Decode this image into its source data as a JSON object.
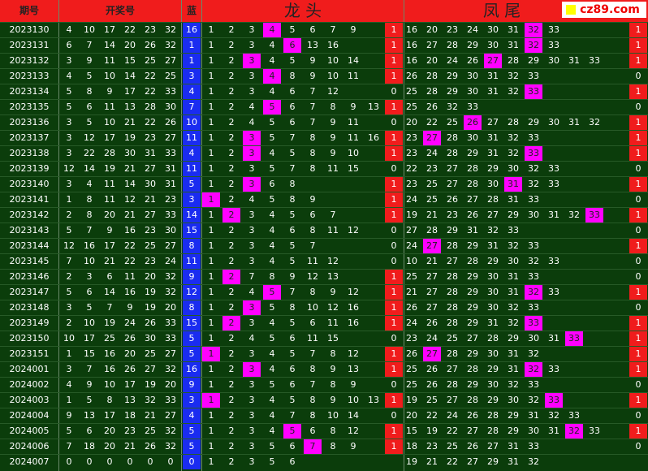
{
  "header": {
    "period": "期号",
    "draw": "开奖号",
    "blue": "蓝",
    "head": "龙 头",
    "tail": "凤 尾",
    "logo": "cz89.com"
  },
  "rows": [
    {
      "period": "2023130",
      "reds": [
        4,
        10,
        17,
        22,
        23,
        32
      ],
      "blue": 16,
      "head": [
        1,
        2,
        3,
        4,
        5,
        6,
        7,
        9
      ],
      "head_flag": 1,
      "tail": [
        16,
        20,
        23,
        24,
        30,
        31,
        32,
        33
      ],
      "tail_flag": 1
    },
    {
      "period": "2023131",
      "reds": [
        6,
        7,
        14,
        20,
        26,
        32
      ],
      "blue": 1,
      "head": [
        1,
        2,
        3,
        4,
        6,
        13,
        16
      ],
      "head_flag": 1,
      "tail": [
        16,
        27,
        28,
        29,
        30,
        31,
        32,
        33
      ],
      "tail_flag": 1
    },
    {
      "period": "2023132",
      "reds": [
        3,
        9,
        11,
        15,
        25,
        27
      ],
      "blue": 1,
      "head": [
        1,
        2,
        3,
        4,
        5,
        9,
        10,
        14
      ],
      "head_flag": 1,
      "tail": [
        16,
        20,
        24,
        26,
        27,
        28,
        29,
        30,
        31,
        33
      ],
      "tail_flag": 1
    },
    {
      "period": "2023133",
      "reds": [
        4,
        5,
        10,
        14,
        22,
        25
      ],
      "blue": 3,
      "head": [
        1,
        2,
        3,
        4,
        8,
        9,
        10,
        11
      ],
      "head_flag": 1,
      "tail": [
        26,
        28,
        29,
        30,
        31,
        32,
        33
      ],
      "tail_flag": 0
    },
    {
      "period": "2023134",
      "reds": [
        5,
        8,
        9,
        17,
        22,
        33
      ],
      "blue": 4,
      "head": [
        1,
        2,
        3,
        4,
        6,
        7,
        12
      ],
      "head_flag": 0,
      "tail": [
        25,
        28,
        29,
        30,
        31,
        32,
        33
      ],
      "tail_flag": 1
    },
    {
      "period": "2023135",
      "reds": [
        5,
        6,
        11,
        13,
        28,
        30
      ],
      "blue": 7,
      "head": [
        1,
        2,
        4,
        5,
        6,
        7,
        8,
        9,
        13
      ],
      "head_flag": 1,
      "tail": [
        25,
        26,
        32,
        33
      ],
      "tail_flag": 0
    },
    {
      "period": "2023136",
      "reds": [
        3,
        5,
        10,
        21,
        22,
        26
      ],
      "blue": 10,
      "head": [
        1,
        2,
        4,
        5,
        6,
        7,
        9,
        11
      ],
      "head_flag": 0,
      "tail": [
        20,
        22,
        25,
        26,
        27,
        28,
        29,
        30,
        31,
        32
      ],
      "tail_flag": 1
    },
    {
      "period": "2023137",
      "reds": [
        3,
        12,
        17,
        19,
        23,
        27
      ],
      "blue": 11,
      "head": [
        1,
        2,
        3,
        5,
        7,
        8,
        9,
        11,
        16
      ],
      "head_flag": 1,
      "tail": [
        23,
        27,
        28,
        30,
        31,
        32,
        33
      ],
      "tail_flag": 1
    },
    {
      "period": "2023138",
      "reds": [
        3,
        22,
        28,
        30,
        31,
        33
      ],
      "blue": 4,
      "head": [
        1,
        2,
        3,
        4,
        5,
        8,
        9,
        10
      ],
      "head_flag": 1,
      "tail": [
        23,
        24,
        28,
        29,
        31,
        32,
        33
      ],
      "tail_flag": 1
    },
    {
      "period": "2023139",
      "reds": [
        12,
        14,
        19,
        21,
        27,
        31
      ],
      "blue": 11,
      "head": [
        1,
        2,
        3,
        5,
        7,
        8,
        11,
        15
      ],
      "head_flag": 0,
      "tail": [
        22,
        23,
        27,
        28,
        29,
        30,
        32,
        33
      ],
      "tail_flag": 0
    },
    {
      "period": "2023140",
      "reds": [
        3,
        4,
        11,
        14,
        30,
        31
      ],
      "blue": 5,
      "head": [
        1,
        2,
        3,
        6,
        8
      ],
      "head_flag": 1,
      "tail": [
        23,
        25,
        27,
        28,
        30,
        31,
        32,
        33
      ],
      "tail_flag": 1
    },
    {
      "period": "2023141",
      "reds": [
        1,
        8,
        11,
        12,
        21,
        23
      ],
      "blue": 3,
      "head": [
        1,
        2,
        4,
        5,
        8,
        9
      ],
      "head_flag": 1,
      "tail": [
        24,
        25,
        26,
        27,
        28,
        31,
        33
      ],
      "tail_flag": 0
    },
    {
      "period": "2023142",
      "reds": [
        2,
        8,
        20,
        21,
        27,
        33
      ],
      "blue": 14,
      "head": [
        1,
        2,
        3,
        4,
        5,
        6,
        7
      ],
      "head_flag": 1,
      "tail": [
        19,
        21,
        23,
        26,
        27,
        29,
        30,
        31,
        32,
        33
      ],
      "tail_flag": 1
    },
    {
      "period": "2023143",
      "reds": [
        5,
        7,
        9,
        16,
        23,
        30
      ],
      "blue": 15,
      "head": [
        1,
        2,
        3,
        4,
        6,
        8,
        11,
        12
      ],
      "head_flag": 0,
      "tail": [
        27,
        28,
        29,
        31,
        32,
        33
      ],
      "tail_flag": 0
    },
    {
      "period": "2023144",
      "reds": [
        12,
        16,
        17,
        22,
        25,
        27
      ],
      "blue": 8,
      "head": [
        1,
        2,
        3,
        4,
        5,
        7
      ],
      "head_flag": 0,
      "tail": [
        24,
        27,
        28,
        29,
        31,
        32,
        33
      ],
      "tail_flag": 1
    },
    {
      "period": "2023145",
      "reds": [
        7,
        10,
        21,
        22,
        23,
        24
      ],
      "blue": 11,
      "head": [
        1,
        2,
        3,
        4,
        5,
        11,
        12
      ],
      "head_flag": 0,
      "tail": [
        10,
        21,
        27,
        28,
        29,
        30,
        32,
        33
      ],
      "tail_flag": 0
    },
    {
      "period": "2023146",
      "reds": [
        2,
        3,
        6,
        11,
        20,
        32
      ],
      "blue": 9,
      "head": [
        1,
        2,
        7,
        8,
        9,
        12,
        13
      ],
      "head_flag": 1,
      "tail": [
        25,
        27,
        28,
        29,
        30,
        31,
        33
      ],
      "tail_flag": 0
    },
    {
      "period": "2023147",
      "reds": [
        5,
        6,
        14,
        16,
        19,
        32
      ],
      "blue": 12,
      "head": [
        1,
        2,
        4,
        5,
        7,
        8,
        9,
        12
      ],
      "head_flag": 1,
      "tail": [
        21,
        27,
        28,
        29,
        30,
        31,
        32,
        33
      ],
      "tail_flag": 1
    },
    {
      "period": "2023148",
      "reds": [
        3,
        5,
        7,
        9,
        19,
        20
      ],
      "blue": 8,
      "head": [
        1,
        2,
        3,
        5,
        8,
        10,
        12,
        16
      ],
      "head_flag": 1,
      "tail": [
        26,
        27,
        28,
        29,
        30,
        32,
        33
      ],
      "tail_flag": 0
    },
    {
      "period": "2023149",
      "reds": [
        2,
        10,
        19,
        24,
        26,
        33
      ],
      "blue": 15,
      "head": [
        1,
        2,
        3,
        4,
        5,
        6,
        11,
        16
      ],
      "head_flag": 1,
      "tail": [
        24,
        26,
        28,
        29,
        31,
        32,
        33
      ],
      "tail_flag": 1
    },
    {
      "period": "2023150",
      "reds": [
        10,
        17,
        25,
        26,
        30,
        33
      ],
      "blue": 5,
      "head": [
        1,
        2,
        4,
        5,
        6,
        11,
        15
      ],
      "head_flag": 0,
      "tail": [
        23,
        24,
        25,
        27,
        28,
        29,
        30,
        31,
        33
      ],
      "tail_flag": 1
    },
    {
      "period": "2023151",
      "reds": [
        1,
        15,
        16,
        20,
        25,
        27
      ],
      "blue": 5,
      "head": [
        1,
        2,
        3,
        4,
        5,
        7,
        8,
        12
      ],
      "head_flag": 1,
      "tail": [
        26,
        27,
        28,
        29,
        30,
        31,
        32
      ],
      "tail_flag": 1
    },
    {
      "period": "2024001",
      "reds": [
        3,
        7,
        16,
        26,
        27,
        32
      ],
      "blue": 16,
      "head": [
        1,
        2,
        3,
        4,
        6,
        8,
        9,
        13
      ],
      "head_flag": 1,
      "tail": [
        25,
        26,
        27,
        28,
        29,
        31,
        32,
        33
      ],
      "tail_flag": 1
    },
    {
      "period": "2024002",
      "reds": [
        4,
        9,
        10,
        17,
        19,
        20
      ],
      "blue": 9,
      "head": [
        1,
        2,
        3,
        5,
        6,
        7,
        8,
        9
      ],
      "head_flag": 0,
      "tail": [
        25,
        26,
        28,
        29,
        30,
        32,
        33
      ],
      "tail_flag": 0
    },
    {
      "period": "2024003",
      "reds": [
        1,
        5,
        8,
        13,
        32,
        33
      ],
      "blue": 3,
      "head": [
        1,
        2,
        3,
        4,
        5,
        8,
        9,
        10,
        13
      ],
      "head_flag": 1,
      "tail": [
        19,
        25,
        27,
        28,
        29,
        30,
        32,
        33
      ],
      "tail_flag": 1
    },
    {
      "period": "2024004",
      "reds": [
        9,
        13,
        17,
        18,
        21,
        27
      ],
      "blue": 4,
      "head": [
        1,
        2,
        3,
        4,
        7,
        8,
        10,
        14
      ],
      "head_flag": 0,
      "tail": [
        20,
        22,
        24,
        26,
        28,
        29,
        31,
        32,
        33
      ],
      "tail_flag": 0
    },
    {
      "period": "2024005",
      "reds": [
        5,
        6,
        20,
        23,
        25,
        32
      ],
      "blue": 5,
      "head": [
        1,
        2,
        3,
        4,
        5,
        6,
        8,
        12
      ],
      "head_flag": 1,
      "tail": [
        15,
        19,
        22,
        27,
        28,
        29,
        30,
        31,
        32,
        33
      ],
      "tail_flag": 1
    },
    {
      "period": "2024006",
      "reds": [
        7,
        18,
        20,
        21,
        26,
        32
      ],
      "blue": 5,
      "head": [
        1,
        2,
        3,
        5,
        6,
        7,
        8,
        9
      ],
      "head_flag": 1,
      "tail": [
        18,
        23,
        25,
        26,
        27,
        31,
        33
      ],
      "tail_flag": 0
    },
    {
      "period": "2024007",
      "reds": [
        0,
        0,
        0,
        0,
        0,
        0
      ],
      "blue": 0,
      "head": [
        1,
        2,
        3,
        5,
        6
      ],
      "tail": [
        19,
        21,
        22,
        27,
        29,
        31,
        32
      ]
    }
  ]
}
